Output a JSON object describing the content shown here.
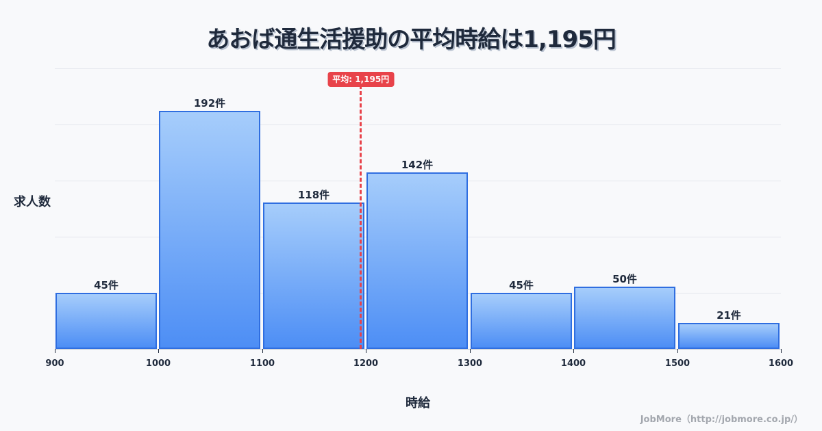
{
  "title": "あおば通生活援助の平均時給は1,195円",
  "y_axis_label": "求人数",
  "x_axis_label": "時給",
  "mean_badge": "平均: 1,195円",
  "credit": "JobMore（http://jobmore.co.jp/）",
  "colors": {
    "bar_top": "#a6cdfb",
    "bar_bottom": "#4d8ef5",
    "bar_border": "#2f6ee0",
    "mean_line": "#e8434a",
    "text": "#1f2a3c",
    "background": "#f8f9fb"
  },
  "ticks": [
    "900",
    "1000",
    "1100",
    "1200",
    "1300",
    "1400",
    "1500",
    "1600"
  ],
  "bars": [
    {
      "label": "45件"
    },
    {
      "label": "192件"
    },
    {
      "label": "118件"
    },
    {
      "label": "142件"
    },
    {
      "label": "45件"
    },
    {
      "label": "50件"
    },
    {
      "label": "21件"
    }
  ],
  "chart_data": {
    "type": "bar",
    "title": "あおば通生活援助の平均時給は1,195円",
    "xlabel": "時給",
    "ylabel": "求人数",
    "categories": [
      "900-1000",
      "1000-1100",
      "1100-1200",
      "1200-1300",
      "1300-1400",
      "1400-1500",
      "1500-1600"
    ],
    "bin_edges": [
      900,
      1000,
      1100,
      1200,
      1300,
      1400,
      1500,
      1600
    ],
    "values": [
      45,
      192,
      118,
      142,
      45,
      50,
      21
    ],
    "value_labels": [
      "45件",
      "192件",
      "118件",
      "142件",
      "45件",
      "50件",
      "21件"
    ],
    "xlim": [
      900,
      1600
    ],
    "ylim": [
      0,
      226
    ],
    "grid": "horizontal",
    "legend": "none",
    "annotations": [
      {
        "type": "vline",
        "x": 1195,
        "style": "dashed",
        "color": "#e8434a",
        "label": "平均: 1,195円"
      }
    ]
  }
}
